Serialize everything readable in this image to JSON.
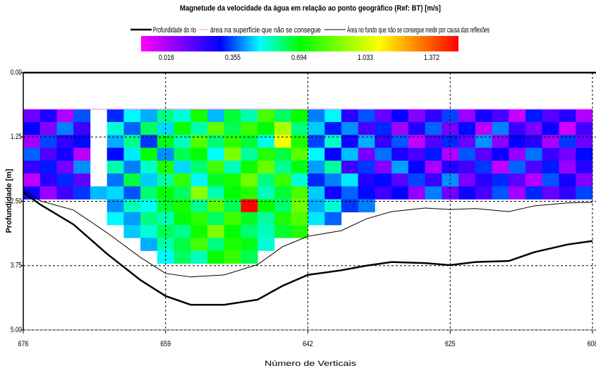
{
  "chart_data": {
    "type": "heatmap",
    "title": "Magnetude da velocidade da água em relação ao ponto geográfico (Ref: BT) [m/s]",
    "xlabel": "Número de Verticais",
    "ylabel": "Profundidade [m]",
    "xlim": [
      676,
      608
    ],
    "xticks": [
      676,
      659,
      642,
      625,
      608
    ],
    "ylim": [
      0,
      5
    ],
    "yticks": [
      {
        "value": 0,
        "label": "0.00"
      },
      {
        "value": 1.25,
        "label": "1.25"
      },
      {
        "value": 2.5,
        "label": "2.50"
      },
      {
        "value": 3.75,
        "label": "3.75"
      },
      {
        "value": 5,
        "label": "5.00"
      }
    ],
    "grid": true,
    "colorbar": {
      "ticks": [
        0.016,
        0.355,
        0.694,
        1.033,
        1.372
      ],
      "colors": [
        "#ff00ff",
        "#0000ff",
        "#00ff00",
        "#ffff00",
        "#ff0000"
      ]
    },
    "xbins": [
      676,
      674,
      672,
      670,
      668,
      666,
      664,
      662,
      660,
      658,
      656,
      654,
      652,
      650,
      648,
      646,
      644,
      642,
      640,
      638,
      636,
      634,
      632,
      630,
      628,
      626,
      624,
      622,
      620,
      618,
      616,
      614,
      612,
      610,
      608
    ],
    "ybins": [
      0.71,
      0.96,
      1.21,
      1.46,
      1.71,
      1.96,
      2.21,
      2.46,
      2.71,
      2.96,
      3.21,
      3.46,
      3.71
    ],
    "values": [
      [
        0.21,
        0.32,
        0.12,
        0.41,
        null,
        0.38,
        0.52,
        0.47,
        0.61,
        0.55,
        0.72,
        0.48,
        0.66,
        0.58,
        0.79,
        0.63,
        0.7,
        0.44,
        0.52,
        0.3,
        0.41,
        0.22,
        0.35,
        0.18,
        0.29,
        0.4,
        0.15,
        0.33,
        0.26,
        0.09,
        0.37,
        0.24,
        0.31,
        0.12
      ],
      [
        0.35,
        0.18,
        0.44,
        0.27,
        null,
        0.55,
        0.42,
        0.63,
        0.5,
        0.71,
        0.58,
        0.82,
        0.64,
        0.77,
        0.69,
        0.92,
        0.61,
        0.49,
        0.37,
        0.45,
        0.26,
        0.38,
        0.14,
        0.31,
        0.42,
        0.2,
        0.36,
        0.11,
        0.44,
        0.28,
        0.19,
        0.34,
        0.08,
        0.27
      ],
      [
        0.14,
        0.4,
        0.29,
        0.36,
        null,
        0.47,
        0.6,
        0.39,
        0.68,
        0.57,
        0.8,
        0.62,
        0.75,
        0.66,
        0.54,
        1.02,
        0.73,
        0.4,
        0.56,
        0.33,
        0.47,
        0.29,
        0.41,
        0.1,
        0.25,
        0.38,
        0.22,
        0.45,
        0.17,
        0.35,
        0.3,
        0.13,
        0.39,
        0.21
      ],
      [
        0.42,
        0.25,
        0.33,
        0.11,
        null,
        0.36,
        0.51,
        0.7,
        0.45,
        0.64,
        0.69,
        0.53,
        0.86,
        0.59,
        0.74,
        0.65,
        0.81,
        0.52,
        0.35,
        0.48,
        0.2,
        0.43,
        0.32,
        0.26,
        0.37,
        0.12,
        0.41,
        0.24,
        0.34,
        0.16,
        0.43,
        0.28,
        0.2,
        0.36
      ],
      [
        0.28,
        0.37,
        0.2,
        0.45,
        null,
        0.58,
        0.44,
        0.56,
        0.73,
        0.5,
        0.62,
        0.78,
        0.57,
        0.71,
        0.83,
        0.6,
        0.68,
        0.46,
        0.59,
        0.27,
        0.39,
        0.18,
        0.46,
        0.34,
        0.13,
        0.31,
        0.27,
        0.39,
        0.1,
        0.42,
        0.25,
        0.37,
        0.15,
        0.3
      ],
      [
        0.1,
        0.3,
        0.38,
        0.23,
        null,
        0.43,
        0.65,
        0.49,
        0.59,
        0.76,
        0.52,
        0.67,
        0.72,
        0.84,
        0.61,
        0.77,
        0.55,
        0.38,
        0.44,
        0.51,
        0.31,
        0.36,
        0.24,
        0.4,
        0.28,
        0.45,
        0.19,
        0.3,
        0.38,
        0.23,
        0.12,
        0.41,
        0.33,
        0.18
      ],
      [
        0.33,
        0.15,
        0.27,
        0.39,
        0.48,
        0.5,
        0.41,
        0.62,
        0.7,
        0.63,
        0.88,
        0.58,
        0.69,
        0.74,
        0.57,
        0.66,
        0.79,
        0.49,
        0.33,
        0.42,
        0.36,
        0.27,
        0.35,
        0.16,
        0.44,
        0.21,
        0.33,
        0.26,
        0.41,
        0.14,
        0.38,
        0.22,
        0.29,
        0.4
      ],
      [
        null,
        null,
        null,
        null,
        null,
        0.45,
        0.57,
        0.53,
        0.66,
        0.72,
        0.6,
        0.81,
        0.64,
        1.37,
        0.7,
        0.62,
        0.84,
        0.47,
        0.55,
        0.39,
        0.44,
        null,
        null,
        null,
        null,
        null,
        null,
        null,
        null,
        null,
        null,
        null,
        null,
        null
      ],
      [
        null,
        null,
        null,
        null,
        null,
        0.52,
        0.46,
        0.61,
        0.58,
        0.69,
        0.75,
        0.63,
        0.78,
        0.67,
        0.59,
        0.73,
        0.8,
        0.51,
        0.42,
        null,
        null,
        null,
        null,
        null,
        null,
        null,
        null,
        null,
        null,
        null,
        null,
        null,
        null,
        null
      ],
      [
        null,
        null,
        null,
        null,
        null,
        null,
        0.49,
        0.55,
        0.64,
        0.6,
        0.71,
        0.86,
        0.69,
        0.62,
        0.57,
        0.66,
        0.74,
        null,
        null,
        null,
        null,
        null,
        null,
        null,
        null,
        null,
        null,
        null,
        null,
        null,
        null,
        null,
        null,
        null
      ],
      [
        null,
        null,
        null,
        null,
        null,
        null,
        null,
        0.47,
        0.58,
        0.65,
        0.79,
        0.61,
        0.73,
        0.68,
        0.55,
        null,
        null,
        null,
        null,
        null,
        null,
        null,
        null,
        null,
        null,
        null,
        null,
        null,
        null,
        null,
        null,
        null,
        null,
        null
      ],
      [
        null,
        null,
        null,
        null,
        null,
        null,
        null,
        null,
        0.52,
        0.63,
        0.57,
        0.7,
        0.76,
        0.64,
        null,
        null,
        null,
        null,
        null,
        null,
        null,
        null,
        null,
        null,
        null,
        null,
        null,
        null,
        null,
        null,
        null,
        null,
        null,
        null
      ]
    ],
    "series": [
      {
        "name": "Profundidade do rio",
        "color": "#000000",
        "width": 2.5,
        "x": [
          676,
          674,
          670,
          666,
          662,
          659,
          656,
          652,
          648,
          645,
          642,
          638,
          635,
          632,
          628,
          625,
          622,
          618,
          615,
          611,
          608
        ],
        "values": [
          2.32,
          2.56,
          2.95,
          3.52,
          4.03,
          4.34,
          4.51,
          4.51,
          4.41,
          4.14,
          3.93,
          3.84,
          3.75,
          3.68,
          3.7,
          3.74,
          3.68,
          3.66,
          3.49,
          3.34,
          3.27
        ]
      },
      {
        "name": "área na superfície que não se consegue",
        "color": "#ff80ff",
        "width": 1,
        "x": [
          676,
          608
        ],
        "values": [
          0.71,
          0.71
        ]
      },
      {
        "name": "Área no fundo que não se consegue medir por causa das reflexões",
        "color": "#000000",
        "width": 1,
        "x": [
          676,
          674,
          670,
          666,
          662,
          659,
          656,
          652,
          648,
          645,
          642,
          638,
          635,
          632,
          628,
          625,
          622,
          618,
          615,
          611,
          608
        ],
        "values": [
          2.26,
          2.49,
          2.67,
          3.11,
          3.59,
          3.9,
          3.97,
          3.93,
          3.73,
          3.38,
          3.18,
          3.07,
          2.84,
          2.7,
          2.63,
          2.66,
          2.64,
          2.7,
          2.59,
          2.53,
          2.52
        ]
      }
    ]
  }
}
